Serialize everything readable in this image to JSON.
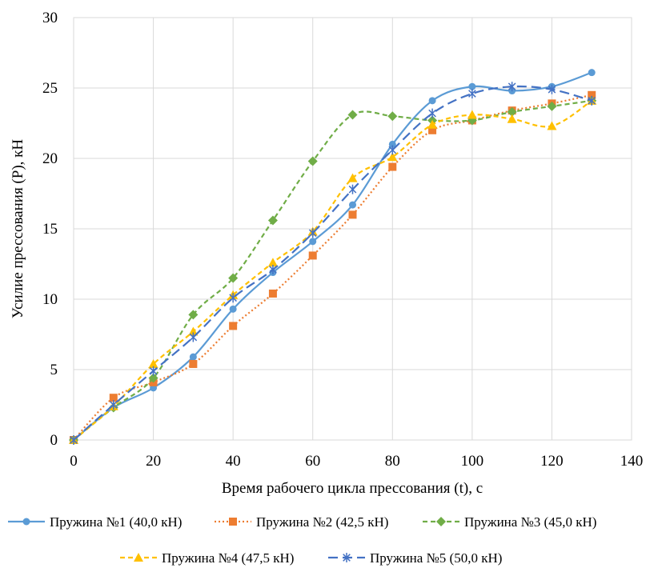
{
  "chart_data": {
    "type": "line",
    "xlabel": "Время рабочего цикла прессования (t), с",
    "ylabel": "Усилие прессования (P), кН",
    "xlim": [
      0,
      140
    ],
    "ylim": [
      0,
      30
    ],
    "xticks": [
      0,
      20,
      40,
      60,
      80,
      100,
      120,
      140
    ],
    "yticks": [
      0,
      5,
      10,
      15,
      20,
      25,
      30
    ],
    "grid": true,
    "legend_position": "bottom",
    "x": [
      0,
      10,
      20,
      30,
      40,
      50,
      60,
      70,
      80,
      90,
      100,
      110,
      120,
      130
    ],
    "series": [
      {
        "name": "Пружина №1 (40,0 кН)",
        "color": "#5B9BD5",
        "line": "solid",
        "marker": "circle",
        "values": [
          0,
          2.3,
          3.7,
          5.9,
          9.3,
          11.9,
          14.1,
          16.7,
          21.0,
          24.1,
          25.1,
          24.8,
          25.1,
          26.1
        ]
      },
      {
        "name": "Пружина №2 (42,5 кН)",
        "color": "#ED7D31",
        "line": "dotted",
        "marker": "square",
        "values": [
          0,
          3.0,
          4.1,
          5.4,
          8.1,
          10.4,
          13.1,
          16.0,
          19.4,
          22.0,
          22.7,
          23.4,
          23.9,
          24.5
        ]
      },
      {
        "name": "Пружина №3 (45,0 кН)",
        "color": "#70AD47",
        "line": "dashed",
        "marker": "diamond",
        "values": [
          0,
          2.3,
          4.4,
          8.9,
          11.5,
          15.6,
          19.8,
          23.1,
          23.0,
          22.7,
          22.7,
          23.3,
          23.7,
          24.1
        ]
      },
      {
        "name": "Пружина №4 (47,5 кН)",
        "color": "#FFC000",
        "line": "dashed",
        "marker": "triangle",
        "values": [
          0,
          2.4,
          5.4,
          7.7,
          10.3,
          12.6,
          14.8,
          18.6,
          20.1,
          22.4,
          23.1,
          22.8,
          22.3,
          24.1
        ]
      },
      {
        "name": "Пружина №5 (50,0 кН)",
        "color": "#4472C4",
        "line": "longdash",
        "marker": "asterisk",
        "values": [
          0,
          2.5,
          4.9,
          7.3,
          10.1,
          12.1,
          14.7,
          17.8,
          20.6,
          23.2,
          24.6,
          25.1,
          24.9,
          24.1
        ]
      }
    ]
  }
}
